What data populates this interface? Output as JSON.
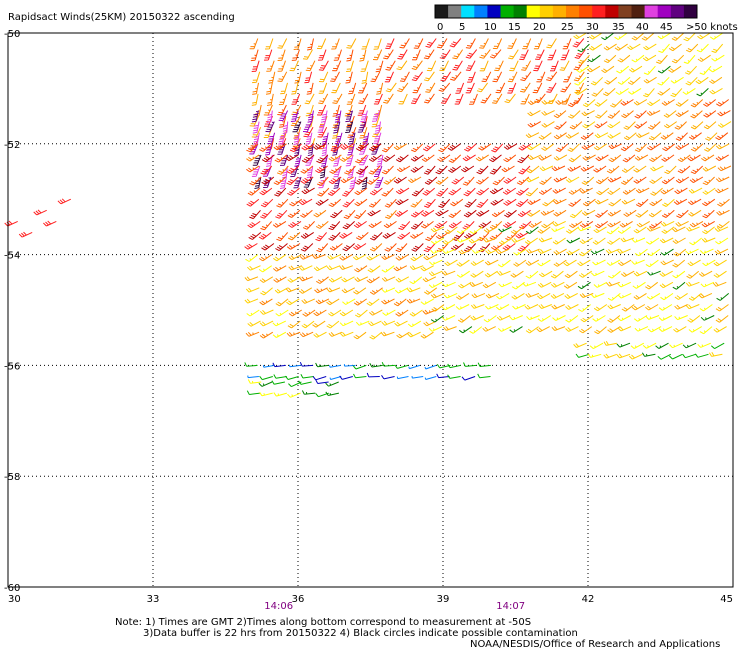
{
  "chart_data": {
    "type": "scatter",
    "title": "Rapidsact Winds(25KM) 20150322 ascending",
    "xlim": [
      30,
      45
    ],
    "ylim": [
      -60,
      -50
    ],
    "x_ticks": [
      "30",
      "33",
      "36",
      "39",
      "42",
      "45"
    ],
    "y_ticks": [
      "-50",
      "-52",
      "-54",
      "-56",
      "-58",
      "-60"
    ],
    "grid": true,
    "time_labels": [
      {
        "text": "14:06",
        "x": 35.6
      },
      {
        "text": "14:07",
        "x": 40.4
      }
    ],
    "colorbar": {
      "labels": [
        "0",
        "5",
        "10",
        "15",
        "20",
        "25",
        "30",
        "35",
        "40",
        "45",
        ">50 knots"
      ],
      "colors": [
        "#1a1a1a",
        "#808080",
        "#00e0ff",
        "#0080ff",
        "#0000c0",
        "#00b000",
        "#008000",
        "#ffff00",
        "#ffd000",
        "#ffb000",
        "#ff8000",
        "#ff5000",
        "#ff2020",
        "#c00000",
        "#804020",
        "#502010",
        "#e040e0",
        "#a000c0",
        "#600080",
        "#300040"
      ]
    },
    "notes": [
      "Note: 1) Times are GMT 2)Times along bottom correspond to measurement at -50S",
      "3)Data buffer is 22 hrs from 20150322 4) Black circles indicate possible contamination",
      "NOAA/NESDIS/Office of Research and Applications"
    ],
    "wind_field": {
      "swath": [
        {
          "lat_from": -50.1,
          "lat_to": -52.0,
          "lon_from": 35.2,
          "lon_to": 38.0,
          "speed": 27,
          "direction_deg": 200
        },
        {
          "lat_from": -51.4,
          "lat_to": -52.8,
          "lon_from": 35.2,
          "lon_to": 37.8,
          "speed": 44,
          "direction_deg": 195
        },
        {
          "lat_from": -50.1,
          "lat_to": -51.2,
          "lon_from": 38.0,
          "lon_to": 42.0,
          "speed": 28,
          "direction_deg": 210
        },
        {
          "lat_from": -50.0,
          "lat_to": -51.2,
          "lon_from": 42.0,
          "lon_to": 45.0,
          "speed": 21,
          "direction_deg": 230
        },
        {
          "lat_from": -52.0,
          "lat_to": -54.0,
          "lon_from": 35.2,
          "lon_to": 41.0,
          "speed": 31,
          "direction_deg": 230
        },
        {
          "lat_from": -51.2,
          "lat_to": -53.5,
          "lon_from": 41.0,
          "lon_to": 45.0,
          "speed": 26,
          "direction_deg": 235
        },
        {
          "lat_from": -54.0,
          "lat_to": -55.6,
          "lon_from": 35.2,
          "lon_to": 39.0,
          "speed": 23,
          "direction_deg": 240
        },
        {
          "lat_from": -53.5,
          "lat_to": -55.4,
          "lon_from": 39.0,
          "lon_to": 45.0,
          "speed": 21,
          "direction_deg": 240
        },
        {
          "lat_from": -55.6,
          "lat_to": -56.0,
          "lon_from": 42.0,
          "lon_to": 45.0,
          "speed": 17,
          "direction_deg": 250
        },
        {
          "lat_from": -56.0,
          "lat_to": -56.4,
          "lon_from": 35.2,
          "lon_to": 40.0,
          "speed": 12,
          "direction_deg": 260
        },
        {
          "lat_from": -56.3,
          "lat_to": -56.6,
          "lon_from": 35.2,
          "lon_to": 37.0,
          "speed": 16,
          "direction_deg": 255
        }
      ],
      "isolated": [
        {
          "lat": -53.4,
          "lon": 30.2,
          "speed": 30,
          "direction_deg": 245
        },
        {
          "lat": -53.2,
          "lon": 30.8,
          "speed": 30,
          "direction_deg": 245
        },
        {
          "lat": -53.0,
          "lon": 31.3,
          "speed": 30,
          "direction_deg": 245
        },
        {
          "lat": -53.6,
          "lon": 30.5,
          "speed": 30,
          "direction_deg": 245
        },
        {
          "lat": -53.4,
          "lon": 31.0,
          "speed": 30,
          "direction_deg": 245
        }
      ]
    }
  }
}
